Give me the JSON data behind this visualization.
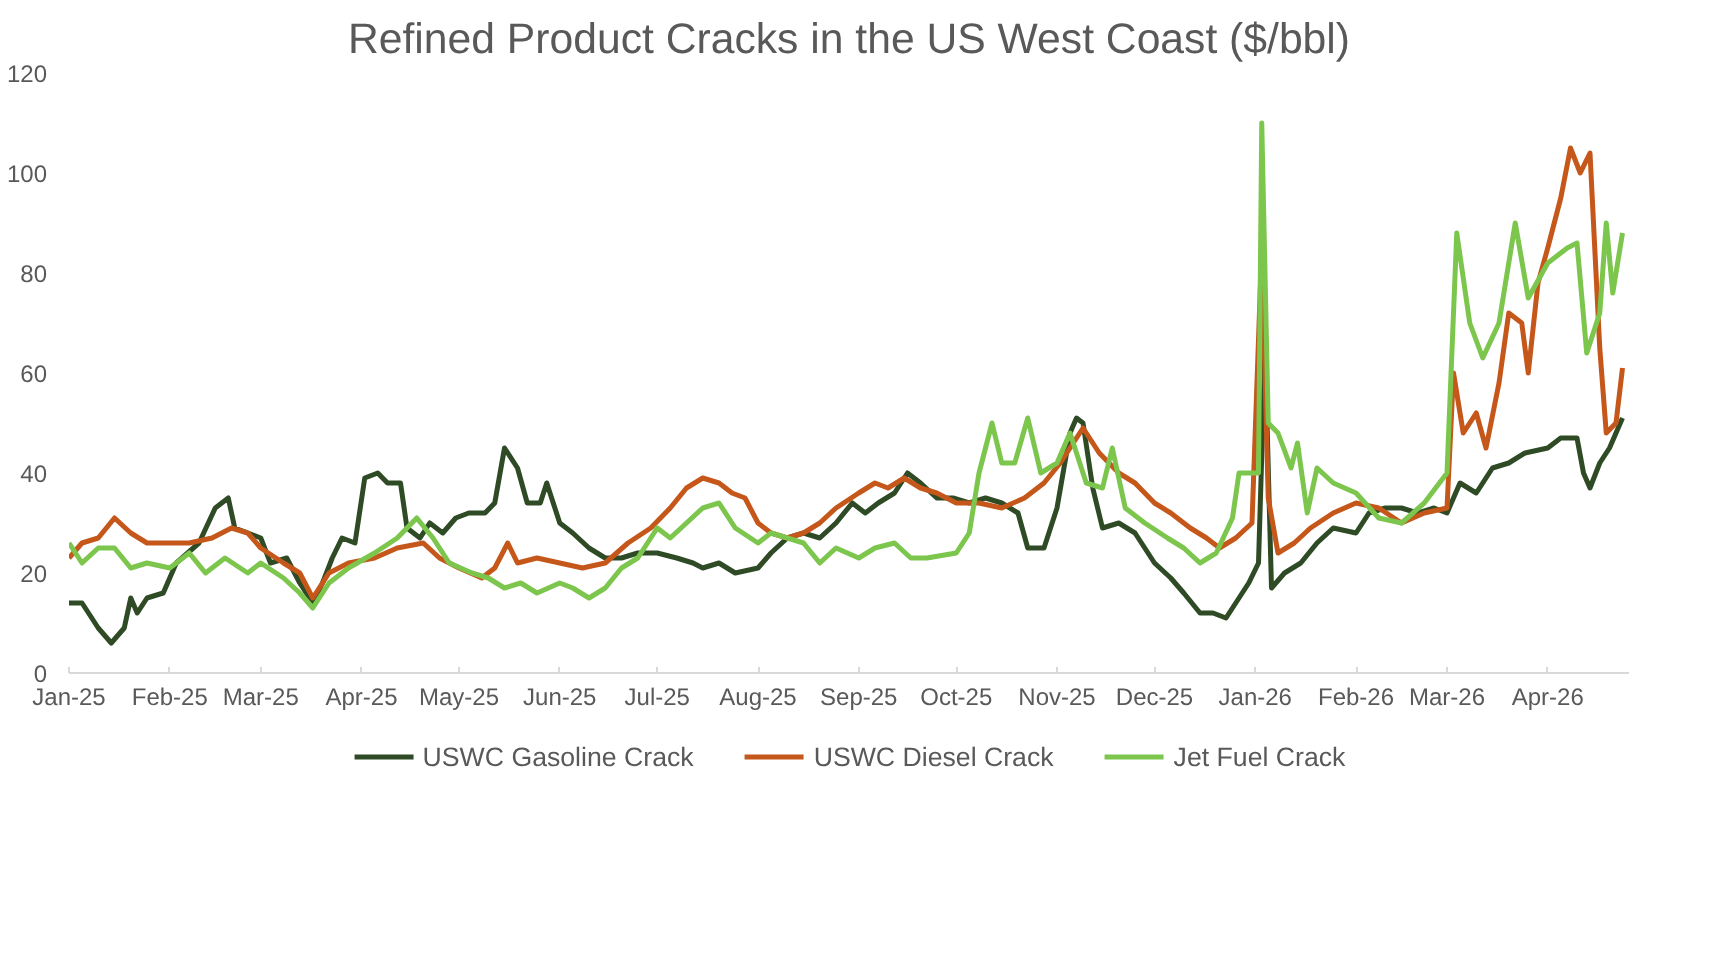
{
  "chart_data": {
    "type": "line",
    "title": "Refined Product Cracks in the US West Coast ($/bbl)",
    "xlim": [
      "2025-01-01",
      "2026-04-26"
    ],
    "xticks": [
      {
        "value": "2025-01-01",
        "label": "Jan-25"
      },
      {
        "value": "2025-02-01",
        "label": "Feb-25"
      },
      {
        "value": "2025-03-01",
        "label": "Mar-25"
      },
      {
        "value": "2025-04-01",
        "label": "Apr-25"
      },
      {
        "value": "2025-05-01",
        "label": "May-25"
      },
      {
        "value": "2025-06-01",
        "label": "Jun-25"
      },
      {
        "value": "2025-07-01",
        "label": "Jul-25"
      },
      {
        "value": "2025-08-01",
        "label": "Aug-25"
      },
      {
        "value": "2025-09-01",
        "label": "Sep-25"
      },
      {
        "value": "2025-10-01",
        "label": "Oct-25"
      },
      {
        "value": "2025-11-01",
        "label": "Nov-25"
      },
      {
        "value": "2025-12-01",
        "label": "Dec-25"
      },
      {
        "value": "2026-01-01",
        "label": "Jan-26"
      },
      {
        "value": "2026-02-01",
        "label": "Feb-26"
      },
      {
        "value": "2026-03-01",
        "label": "Mar-26"
      },
      {
        "value": "2026-04-01",
        "label": "Apr-26"
      }
    ],
    "ylim": [
      0,
      120
    ],
    "yticks": [
      0,
      20,
      40,
      60,
      80,
      100,
      120
    ],
    "grid": false,
    "legend": "bottom",
    "marker": "none",
    "line_style": "solid",
    "series": [
      {
        "name": "USWC Gasoline Crack",
        "color": "#2f4b26",
        "x": [
          "2025-01-01",
          "2025-01-05",
          "2025-01-10",
          "2025-01-14",
          "2025-01-18",
          "2025-01-20",
          "2025-01-22",
          "2025-01-25",
          "2025-01-30",
          "2025-02-03",
          "2025-02-10",
          "2025-02-15",
          "2025-02-19",
          "2025-02-21",
          "2025-02-25",
          "2025-03-01",
          "2025-03-04",
          "2025-03-09",
          "2025-03-13",
          "2025-03-17",
          "2025-03-20",
          "2025-03-23",
          "2025-03-26",
          "2025-03-30",
          "2025-04-02",
          "2025-04-06",
          "2025-04-09",
          "2025-04-13",
          "2025-04-15",
          "2025-04-19",
          "2025-04-22",
          "2025-04-26",
          "2025-04-30",
          "2025-05-04",
          "2025-05-09",
          "2025-05-12",
          "2025-05-15",
          "2025-05-19",
          "2025-05-22",
          "2025-05-26",
          "2025-05-28",
          "2025-06-01",
          "2025-06-05",
          "2025-06-10",
          "2025-06-15",
          "2025-06-20",
          "2025-06-25",
          "2025-07-01",
          "2025-07-07",
          "2025-07-12",
          "2025-07-15",
          "2025-07-20",
          "2025-07-25",
          "2025-08-01",
          "2025-08-05",
          "2025-08-10",
          "2025-08-15",
          "2025-08-20",
          "2025-08-25",
          "2025-08-30",
          "2025-09-03",
          "2025-09-07",
          "2025-09-12",
          "2025-09-16",
          "2025-09-20",
          "2025-09-25",
          "2025-09-30",
          "2025-10-05",
          "2025-10-10",
          "2025-10-15",
          "2025-10-20",
          "2025-10-23",
          "2025-10-28",
          "2025-11-01",
          "2025-11-05",
          "2025-11-07",
          "2025-11-09",
          "2025-11-12",
          "2025-11-15",
          "2025-11-20",
          "2025-11-25",
          "2025-12-01",
          "2025-12-06",
          "2025-12-10",
          "2025-12-15",
          "2025-12-19",
          "2025-12-23",
          "2025-12-26",
          "2025-12-30",
          "2026-01-02",
          "2026-01-04",
          "2026-01-06",
          "2026-01-10",
          "2026-01-15",
          "2026-01-20",
          "2026-01-25",
          "2026-02-01",
          "2026-02-05",
          "2026-02-10",
          "2026-02-15",
          "2026-02-20",
          "2026-02-25",
          "2026-03-01",
          "2026-03-05",
          "2026-03-10",
          "2026-03-15",
          "2026-03-20",
          "2026-03-25",
          "2026-04-01",
          "2026-04-05",
          "2026-04-10",
          "2026-04-12",
          "2026-04-14",
          "2026-04-17",
          "2026-04-20",
          "2026-04-24"
        ],
        "values": [
          14,
          14,
          9,
          6,
          9,
          15,
          12,
          15,
          16,
          22,
          26,
          33,
          35,
          29,
          28,
          27,
          22,
          23,
          18,
          14,
          18,
          23,
          27,
          26,
          39,
          40,
          38,
          38,
          29,
          27,
          30,
          28,
          31,
          32,
          32,
          34,
          45,
          41,
          34,
          34,
          38,
          30,
          28,
          25,
          23,
          23,
          24,
          24,
          23,
          22,
          21,
          22,
          20,
          21,
          24,
          27,
          28,
          27,
          30,
          34,
          32,
          34,
          36,
          40,
          38,
          35,
          35,
          34,
          35,
          34,
          32,
          25,
          25,
          33,
          48,
          51,
          50,
          37,
          29,
          30,
          28,
          22,
          19,
          16,
          12,
          12,
          11,
          14,
          18,
          22,
          65,
          17,
          20,
          22,
          26,
          29,
          28,
          32,
          33,
          33,
          32,
          33,
          32,
          38,
          36,
          41,
          42,
          44,
          45,
          47,
          47,
          40,
          37,
          42,
          45,
          51
        ]
      },
      {
        "name": "USWC Diesel Crack",
        "color": "#c5571a",
        "x": [
          "2025-01-01",
          "2025-01-05",
          "2025-01-10",
          "2025-01-15",
          "2025-01-20",
          "2025-01-25",
          "2025-02-01",
          "2025-02-07",
          "2025-02-14",
          "2025-02-20",
          "2025-02-25",
          "2025-03-01",
          "2025-03-08",
          "2025-03-13",
          "2025-03-17",
          "2025-03-22",
          "2025-03-28",
          "2025-04-05",
          "2025-04-12",
          "2025-04-20",
          "2025-04-25",
          "2025-05-01",
          "2025-05-08",
          "2025-05-12",
          "2025-05-16",
          "2025-05-19",
          "2025-05-25",
          "2025-06-01",
          "2025-06-08",
          "2025-06-15",
          "2025-06-22",
          "2025-06-29",
          "2025-07-05",
          "2025-07-10",
          "2025-07-15",
          "2025-07-20",
          "2025-07-24",
          "2025-07-28",
          "2025-08-01",
          "2025-08-05",
          "2025-08-10",
          "2025-08-15",
          "2025-08-20",
          "2025-08-25",
          "2025-09-01",
          "2025-09-06",
          "2025-09-10",
          "2025-09-15",
          "2025-09-20",
          "2025-09-25",
          "2025-10-01",
          "2025-10-08",
          "2025-10-15",
          "2025-10-22",
          "2025-10-28",
          "2025-11-02",
          "2025-11-06",
          "2025-11-09",
          "2025-11-14",
          "2025-11-20",
          "2025-11-25",
          "2025-12-01",
          "2025-12-06",
          "2025-12-12",
          "2025-12-17",
          "2025-12-21",
          "2025-12-26",
          "2025-12-31",
          "2026-01-03",
          "2026-01-05",
          "2026-01-08",
          "2026-01-13",
          "2026-01-18",
          "2026-01-25",
          "2026-02-01",
          "2026-02-08",
          "2026-02-15",
          "2026-02-22",
          "2026-03-01",
          "2026-03-03",
          "2026-03-06",
          "2026-03-10",
          "2026-03-13",
          "2026-03-17",
          "2026-03-20",
          "2026-03-24",
          "2026-03-26",
          "2026-03-29",
          "2026-04-01",
          "2026-04-05",
          "2026-04-08",
          "2026-04-11",
          "2026-04-14",
          "2026-04-17",
          "2026-04-19",
          "2026-04-22",
          "2026-04-24"
        ],
        "values": [
          23,
          26,
          27,
          31,
          28,
          26,
          26,
          26,
          27,
          29,
          28,
          25,
          22,
          20,
          15,
          20,
          22,
          23,
          25,
          26,
          23,
          21,
          19,
          21,
          26,
          22,
          23,
          22,
          21,
          22,
          26,
          29,
          33,
          37,
          39,
          38,
          36,
          35,
          30,
          28,
          27,
          28,
          30,
          33,
          36,
          38,
          37,
          39,
          37,
          36,
          34,
          34,
          33,
          35,
          38,
          42,
          46,
          49,
          44,
          40,
          38,
          34,
          32,
          29,
          27,
          25,
          27,
          30,
          85,
          35,
          24,
          26,
          29,
          32,
          34,
          33,
          30,
          32,
          33,
          60,
          48,
          52,
          45,
          58,
          72,
          70,
          60,
          78,
          85,
          95,
          105,
          100,
          104,
          65,
          48,
          50,
          61
        ]
      },
      {
        "name": "Jet Fuel Crack",
        "color": "#7dc64d",
        "x": [
          "2025-01-01",
          "2025-01-05",
          "2025-01-10",
          "2025-01-15",
          "2025-01-20",
          "2025-01-25",
          "2025-02-01",
          "2025-02-07",
          "2025-02-12",
          "2025-02-18",
          "2025-02-25",
          "2025-03-01",
          "2025-03-08",
          "2025-03-13",
          "2025-03-17",
          "2025-03-22",
          "2025-03-28",
          "2025-04-05",
          "2025-04-12",
          "2025-04-18",
          "2025-04-23",
          "2025-04-28",
          "2025-05-05",
          "2025-05-10",
          "2025-05-15",
          "2025-05-20",
          "2025-05-25",
          "2025-06-01",
          "2025-06-05",
          "2025-06-10",
          "2025-06-15",
          "2025-06-20",
          "2025-06-25",
          "2025-07-01",
          "2025-07-05",
          "2025-07-10",
          "2025-07-15",
          "2025-07-20",
          "2025-07-25",
          "2025-08-01",
          "2025-08-05",
          "2025-08-10",
          "2025-08-15",
          "2025-08-20",
          "2025-08-25",
          "2025-09-01",
          "2025-09-06",
          "2025-09-12",
          "2025-09-17",
          "2025-09-22",
          "2025-10-01",
          "2025-10-05",
          "2025-10-08",
          "2025-10-12",
          "2025-10-15",
          "2025-10-19",
          "2025-10-23",
          "2025-10-27",
          "2025-11-01",
          "2025-11-05",
          "2025-11-10",
          "2025-11-15",
          "2025-11-18",
          "2025-11-22",
          "2025-11-28",
          "2025-12-05",
          "2025-12-10",
          "2025-12-15",
          "2025-12-20",
          "2025-12-25",
          "2025-12-27",
          "2026-01-02",
          "2026-01-03",
          "2026-01-05",
          "2026-01-08",
          "2026-01-12",
          "2026-01-14",
          "2026-01-17",
          "2026-01-20",
          "2026-01-25",
          "2026-02-01",
          "2026-02-08",
          "2026-02-15",
          "2026-02-22",
          "2026-03-01",
          "2026-03-04",
          "2026-03-08",
          "2026-03-12",
          "2026-03-17",
          "2026-03-22",
          "2026-03-26",
          "2026-04-01",
          "2026-04-07",
          "2026-04-10",
          "2026-04-13",
          "2026-04-17",
          "2026-04-19",
          "2026-04-21",
          "2026-04-24"
        ],
        "values": [
          26,
          22,
          25,
          25,
          21,
          22,
          21,
          24,
          20,
          23,
          20,
          22,
          19,
          16,
          13,
          18,
          21,
          24,
          27,
          31,
          27,
          22,
          20,
          19,
          17,
          18,
          16,
          18,
          17,
          15,
          17,
          21,
          23,
          29,
          27,
          30,
          33,
          34,
          29,
          26,
          28,
          27,
          26,
          22,
          25,
          23,
          25,
          26,
          23,
          23,
          24,
          28,
          40,
          50,
          42,
          42,
          51,
          40,
          42,
          48,
          38,
          37,
          45,
          33,
          30,
          27,
          25,
          22,
          24,
          31,
          40,
          40,
          110,
          50,
          48,
          41,
          46,
          32,
          41,
          38,
          36,
          31,
          30,
          34,
          40,
          88,
          70,
          63,
          70,
          90,
          75,
          82,
          85,
          86,
          64,
          72,
          90,
          76,
          88
        ]
      }
    ]
  }
}
